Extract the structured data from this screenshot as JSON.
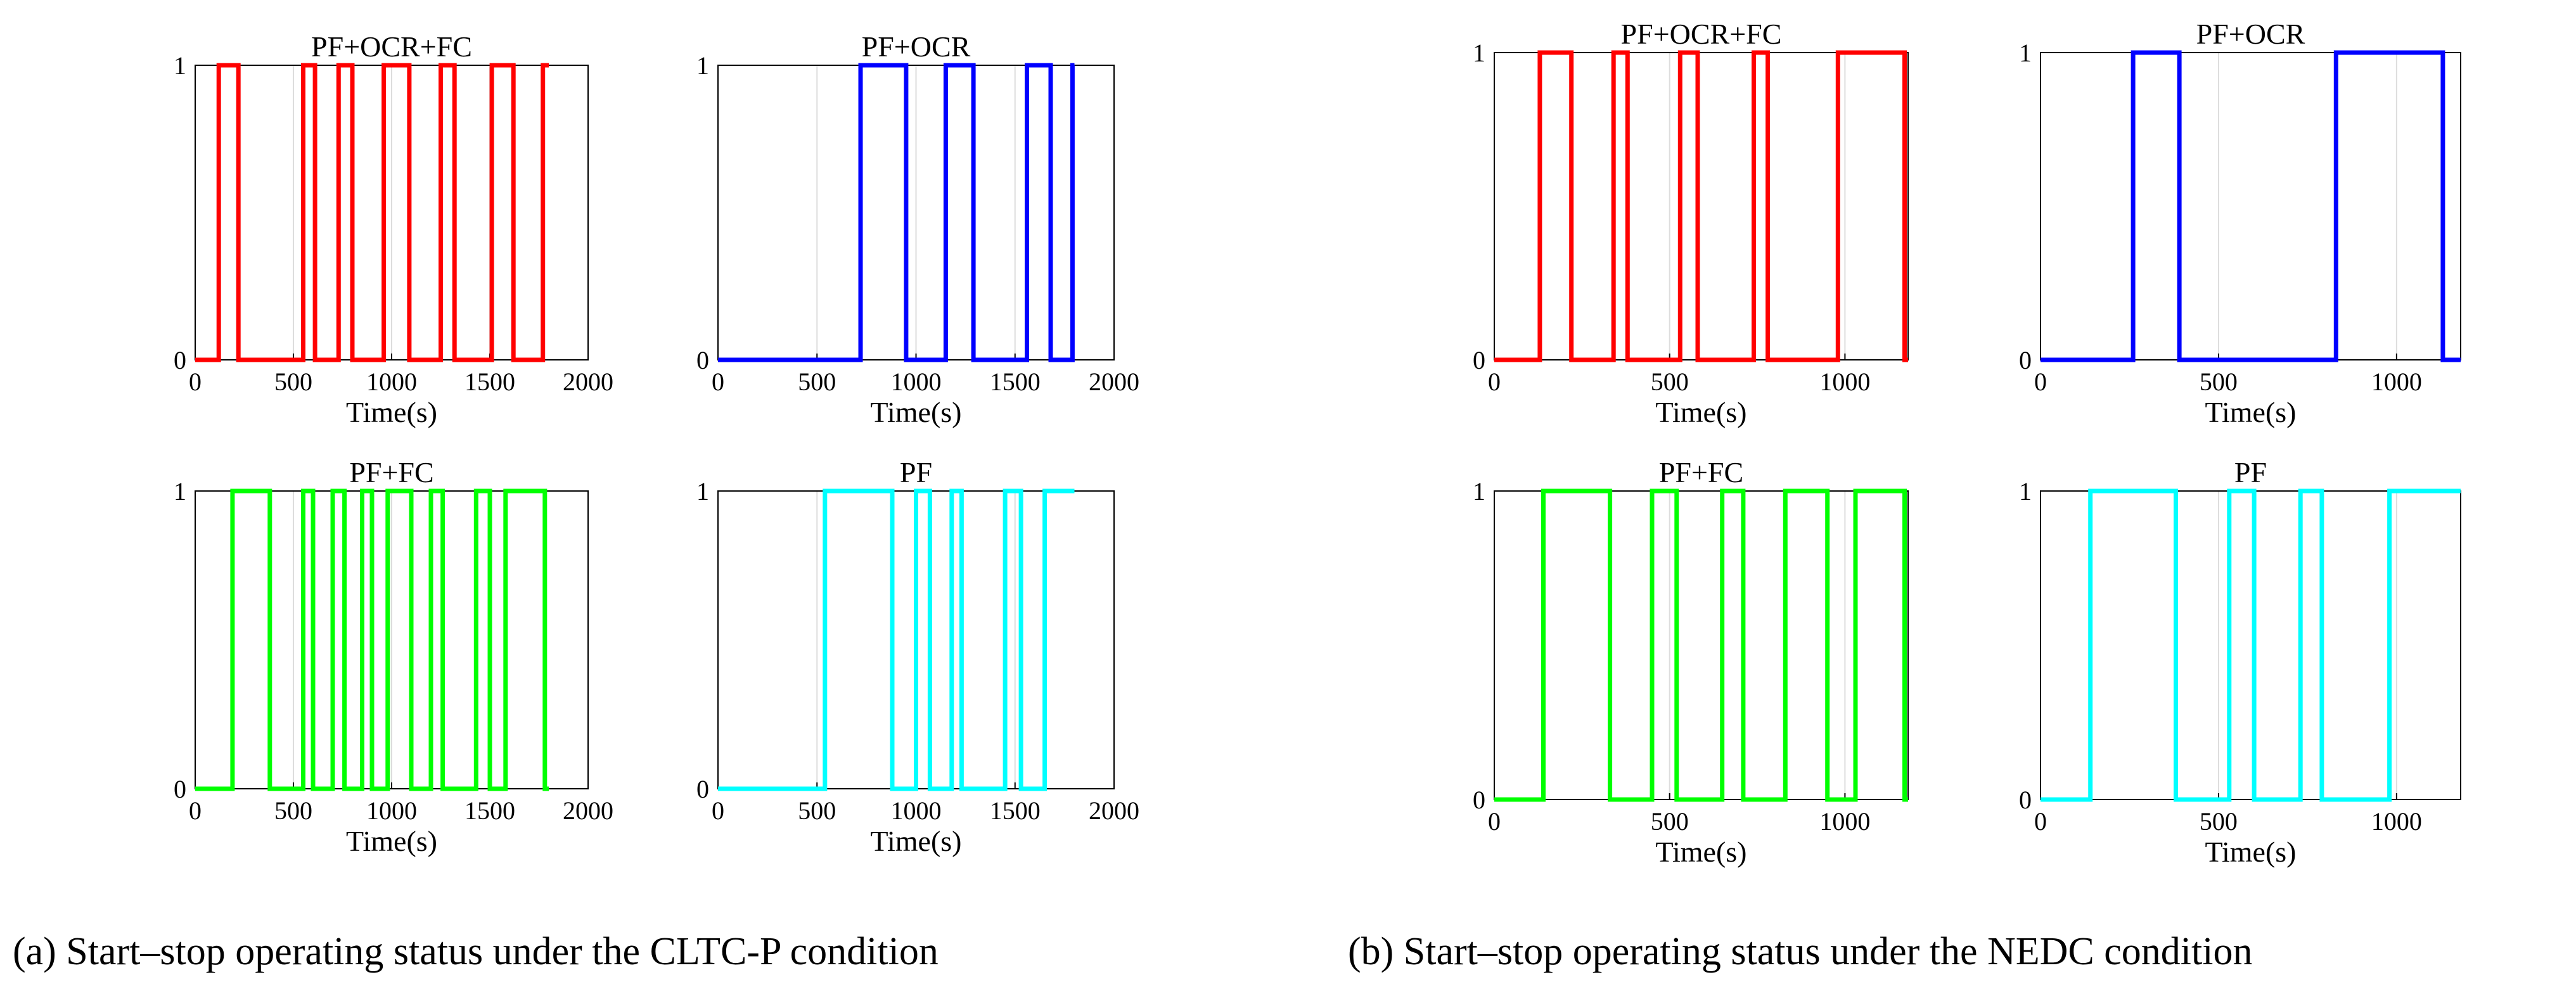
{
  "captions": {
    "a": "(a) Start–stop operating status under the CLTC-P condition",
    "b": "(b) Start–stop operating status under the NEDC condition"
  },
  "chart_data": [
    {
      "type": "line",
      "title": "PF+OCR+FC",
      "xlabel": "Time(s)",
      "ylabel": "",
      "color": "#ff0000",
      "xlim": [
        0,
        2000
      ],
      "ylim": [
        0,
        1
      ],
      "xticks": [
        0,
        500,
        1000,
        1500,
        2000
      ],
      "xtick_labels": [
        "0",
        "500",
        "1000",
        "1500",
        "2000"
      ],
      "yticks": [
        0,
        1
      ],
      "ytick_labels": [
        "0",
        "1"
      ],
      "grid_x": [
        500,
        1000,
        1500
      ],
      "on_intervals": [
        [
          120,
          220
        ],
        [
          550,
          610
        ],
        [
          730,
          800
        ],
        [
          960,
          1090
        ],
        [
          1250,
          1320
        ],
        [
          1510,
          1620
        ],
        [
          1770,
          1800
        ]
      ],
      "x_end": 1800
    },
    {
      "type": "line",
      "title": "PF+OCR",
      "xlabel": "Time(s)",
      "ylabel": "",
      "color": "#0000ff",
      "xlim": [
        0,
        2000
      ],
      "ylim": [
        0,
        1
      ],
      "xticks": [
        0,
        500,
        1000,
        1500,
        2000
      ],
      "xtick_labels": [
        "0",
        "500",
        "1000",
        "1500",
        "2000"
      ],
      "yticks": [
        0,
        1
      ],
      "ytick_labels": [
        "0",
        "1"
      ],
      "grid_x": [
        500,
        1000,
        1500
      ],
      "on_intervals": [
        [
          720,
          950
        ],
        [
          1150,
          1290
        ],
        [
          1560,
          1680
        ],
        [
          1790,
          1800
        ]
      ],
      "x_end": 1800
    },
    {
      "type": "line",
      "title": "PF+FC",
      "xlabel": "Time(s)",
      "ylabel": "",
      "color": "#00ff00",
      "xlim": [
        0,
        2000
      ],
      "ylim": [
        0,
        1
      ],
      "xticks": [
        0,
        500,
        1000,
        1500,
        2000
      ],
      "xtick_labels": [
        "0",
        "500",
        "1000",
        "1500",
        "2000"
      ],
      "yticks": [
        0,
        1
      ],
      "ytick_labels": [
        "0",
        "1"
      ],
      "grid_x": [
        500,
        1000,
        1500
      ],
      "on_intervals": [
        [
          190,
          380
        ],
        [
          550,
          600
        ],
        [
          700,
          760
        ],
        [
          850,
          900
        ],
        [
          980,
          1100
        ],
        [
          1200,
          1260
        ],
        [
          1430,
          1500
        ],
        [
          1580,
          1780
        ]
      ],
      "x_end": 1800
    },
    {
      "type": "line",
      "title": "PF",
      "xlabel": "Time(s)",
      "ylabel": "",
      "color": "#00ffff",
      "xlim": [
        0,
        2000
      ],
      "ylim": [
        0,
        1
      ],
      "xticks": [
        0,
        500,
        1000,
        1500,
        2000
      ],
      "xtick_labels": [
        "0",
        "500",
        "1000",
        "1500",
        "2000"
      ],
      "yticks": [
        0,
        1
      ],
      "ytick_labels": [
        "0",
        "1"
      ],
      "grid_x": [
        500,
        1000,
        1500
      ],
      "on_intervals": [
        [
          540,
          880
        ],
        [
          1000,
          1070
        ],
        [
          1180,
          1230
        ],
        [
          1450,
          1530
        ],
        [
          1650,
          1800
        ]
      ],
      "x_end": 1800
    },
    {
      "type": "line",
      "title": "PF+OCR+FC",
      "xlabel": "Time(s)",
      "ylabel": "",
      "color": "#ff0000",
      "xlim": [
        0,
        1180
      ],
      "ylim": [
        0,
        1
      ],
      "xticks": [
        0,
        500,
        1000
      ],
      "xtick_labels": [
        "0",
        "500",
        "1000"
      ],
      "yticks": [
        0,
        1
      ],
      "ytick_labels": [
        "0",
        "1"
      ],
      "grid_x": [
        500,
        1000
      ],
      "on_intervals": [
        [
          130,
          220
        ],
        [
          340,
          380
        ],
        [
          530,
          580
        ],
        [
          740,
          780
        ],
        [
          980,
          1170
        ]
      ],
      "x_end": 1180
    },
    {
      "type": "line",
      "title": "PF+OCR",
      "xlabel": "Time(s)",
      "ylabel": "",
      "color": "#0000ff",
      "xlim": [
        0,
        1180
      ],
      "ylim": [
        0,
        1
      ],
      "xticks": [
        0,
        500,
        1000
      ],
      "xtick_labels": [
        "0",
        "500",
        "1000"
      ],
      "yticks": [
        0,
        1
      ],
      "ytick_labels": [
        "0",
        "1"
      ],
      "grid_x": [
        500,
        1000
      ],
      "on_intervals": [
        [
          260,
          390
        ],
        [
          830,
          1130
        ]
      ],
      "x_end": 1180
    },
    {
      "type": "line",
      "title": "PF+FC",
      "xlabel": "Time(s)",
      "ylabel": "",
      "color": "#00ff00",
      "xlim": [
        0,
        1180
      ],
      "ylim": [
        0,
        1
      ],
      "xticks": [
        0,
        500,
        1000
      ],
      "xtick_labels": [
        "0",
        "500",
        "1000"
      ],
      "yticks": [
        0,
        1
      ],
      "ytick_labels": [
        "0",
        "1"
      ],
      "grid_x": [
        500,
        1000
      ],
      "on_intervals": [
        [
          140,
          330
        ],
        [
          450,
          520
        ],
        [
          650,
          710
        ],
        [
          830,
          950
        ],
        [
          1030,
          1170
        ]
      ],
      "x_end": 1180
    },
    {
      "type": "line",
      "title": "PF",
      "xlabel": "Time(s)",
      "ylabel": "",
      "color": "#00ffff",
      "xlim": [
        0,
        1180
      ],
      "ylim": [
        0,
        1
      ],
      "xticks": [
        0,
        500,
        1000
      ],
      "xtick_labels": [
        "0",
        "500",
        "1000"
      ],
      "yticks": [
        0,
        1
      ],
      "ytick_labels": [
        "0",
        "1"
      ],
      "grid_x": [
        500,
        1000
      ],
      "on_intervals": [
        [
          140,
          380
        ],
        [
          530,
          600
        ],
        [
          730,
          790
        ],
        [
          980,
          1180
        ]
      ],
      "x_end": 1180
    }
  ]
}
